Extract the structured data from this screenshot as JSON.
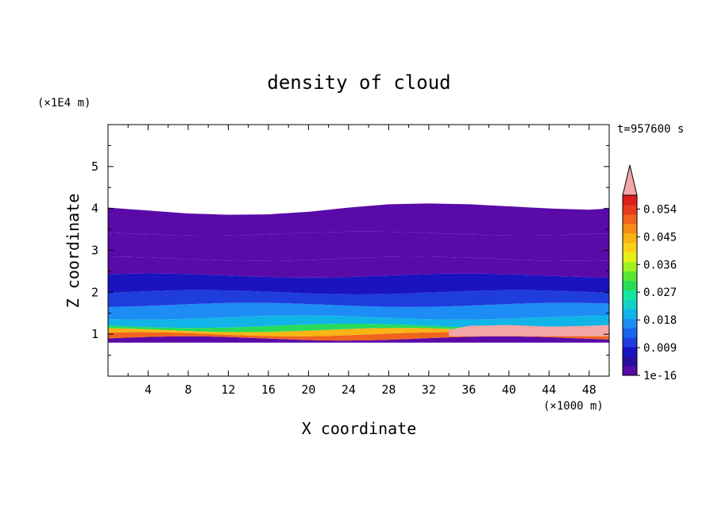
{
  "chart_data": {
    "type": "heatmap",
    "title": "density of cloud",
    "xlabel": "X coordinate",
    "ylabel": "Z coordinate",
    "x_unit": "(×1000 m)",
    "y_unit": "(×1E4 m)",
    "time_label": "t=957600 s",
    "xlim": [
      0,
      50
    ],
    "ylim": [
      0,
      6
    ],
    "x_ticks": [
      "4",
      "8",
      "12",
      "16",
      "20",
      "24",
      "28",
      "32",
      "36",
      "40",
      "44",
      "48"
    ],
    "y_ticks": [
      "1",
      "2",
      "3",
      "4",
      "5"
    ],
    "colorbar": {
      "labels": [
        "1e-16",
        "0.009",
        "0.018",
        "0.027",
        "0.036",
        "0.045",
        "0.054"
      ],
      "label_values": [
        0,
        0.009,
        0.018,
        0.027,
        0.036,
        0.045,
        0.054
      ],
      "min": 0,
      "max": 0.0585,
      "over_color": "#f4a6a6",
      "colors": [
        "#5a0aa8",
        "#2a0d9a",
        "#1a14c0",
        "#1f3cdc",
        "#1a64f0",
        "#1e8cf5",
        "#10b4e6",
        "#12d2c8",
        "#14e6a0",
        "#28dc5a",
        "#5ae632",
        "#a0f01e",
        "#e6f014",
        "#fad214",
        "#fab414",
        "#f58c14",
        "#f0641e",
        "#e63c1e",
        "#dc1e1e"
      ]
    },
    "cloud_layers": [
      {
        "z_bottom": 0.8,
        "z_top": 0.9,
        "value": 0.003
      },
      {
        "z_bottom": 0.9,
        "z_top": 1.0,
        "value": 0.05
      },
      {
        "z_bottom": 1.0,
        "z_top": 1.1,
        "value": 0.044
      },
      {
        "z_bottom": 1.1,
        "z_top": 1.2,
        "value": 0.03
      },
      {
        "z_bottom": 1.2,
        "z_top": 1.4,
        "value": 0.021
      },
      {
        "z_bottom": 1.4,
        "z_top": 1.7,
        "value": 0.016
      },
      {
        "z_bottom": 1.7,
        "z_top": 2.0,
        "value": 0.012
      },
      {
        "z_bottom": 2.0,
        "z_top": 2.4,
        "value": 0.007
      },
      {
        "z_bottom": 2.4,
        "z_top": 2.8,
        "value": 0.003
      },
      {
        "z_bottom": 2.8,
        "z_top": 3.4,
        "value": 0.0015
      },
      {
        "z_bottom": 3.4,
        "z_top": 4.0,
        "value": 0.0005
      }
    ],
    "cloud_top_profile": {
      "x": [
        0,
        4,
        8,
        12,
        16,
        20,
        24,
        28,
        32,
        36,
        40,
        44,
        48,
        50
      ],
      "z": [
        4.02,
        3.95,
        3.88,
        3.85,
        3.86,
        3.92,
        4.02,
        4.1,
        4.12,
        4.1,
        4.05,
        4.0,
        3.97,
        4.0
      ]
    },
    "saturated_region": {
      "x": [
        34,
        36,
        40,
        44,
        48,
        50
      ],
      "z_top": [
        1.1,
        1.2,
        1.22,
        1.18,
        1.2,
        1.22
      ],
      "z_bottom": [
        0.95,
        0.95,
        0.95,
        0.95,
        0.95,
        0.95
      ]
    }
  }
}
